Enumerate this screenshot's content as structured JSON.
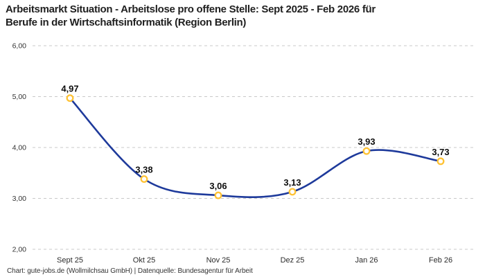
{
  "header": {
    "title_line1": "Arbeitsmarkt Situation - Arbeitslose pro offene Stelle: Sept 2025 - Feb 2026 für",
    "title_line2": "Berufe in der Wirtschaftsinformatik (Region Berlin)"
  },
  "footer": {
    "attribution": "Chart: gute-jobs.de (Wollmilchsau GmbH) | Datenquelle: Bundesagentur für Arbeit"
  },
  "chart_data": {
    "type": "line",
    "title": "Arbeitsmarkt Situation - Arbeitslose pro offene Stelle: Sept 2025 - Feb 2026 für Berufe in der Wirtschaftsinformatik (Region Berlin)",
    "categories": [
      "Sept 25",
      "Okt 25",
      "Nov 25",
      "Dez 25",
      "Jan 26",
      "Feb 26"
    ],
    "series": [
      {
        "name": "Arbeitslose pro offene Stelle",
        "values": [
          4.97,
          3.38,
          3.06,
          3.13,
          3.93,
          3.73
        ]
      }
    ],
    "value_labels": [
      "4,97",
      "3,38",
      "3,06",
      "3,13",
      "3,93",
      "3,73"
    ],
    "y_ticks": [
      "6,00",
      "5,00",
      "4,00",
      "3,00",
      "2,00"
    ],
    "y_tick_values": [
      6,
      5,
      4,
      3,
      2
    ],
    "ylim": [
      2,
      6
    ],
    "xlabel": "",
    "ylabel": "",
    "grid": "horizontal-dashed",
    "legend": "none",
    "line_style": "smooth",
    "colors": {
      "line": "#1E3A9B",
      "marker_stroke": "#FFC233",
      "marker_fill": "#FFFFFF",
      "grid": "#C8C8C8",
      "value_label": "#0d0d0d",
      "tick_label": "#333333"
    }
  }
}
